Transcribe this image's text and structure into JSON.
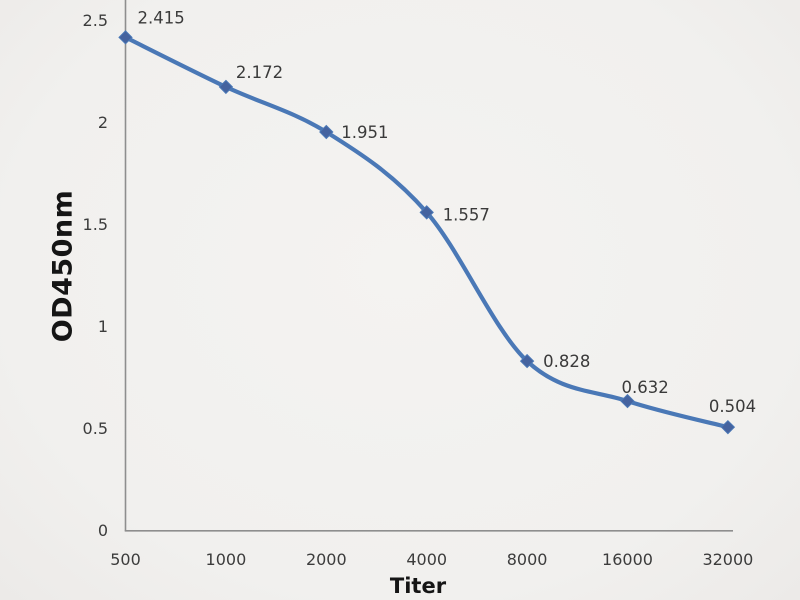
{
  "chart_data": {
    "type": "line",
    "subtype": "smooth-line-with-markers",
    "title": "",
    "xlabel": "Titer",
    "ylabel": "OD450nm",
    "categories": [
      500,
      1000,
      2000,
      4000,
      8000,
      16000,
      32000
    ],
    "category_labels": [
      "500",
      "1000",
      "2000",
      "4000",
      "8000",
      "16000",
      "32000"
    ],
    "series": [
      {
        "name": "OD450nm",
        "values": [
          2.415,
          2.172,
          1.951,
          1.557,
          0.828,
          0.632,
          0.504
        ]
      }
    ],
    "point_labels": [
      "2.415",
      "2.172",
      "1.951",
      "1.557",
      "0.828",
      "0.632",
      "0.504"
    ],
    "ylim": [
      0,
      2.5
    ],
    "y_ticks": [
      0,
      0.5,
      1,
      1.5,
      2,
      2.5
    ],
    "y_tick_labels": [
      "0",
      "0.5",
      "1",
      "1.5",
      "2",
      "2.5"
    ],
    "x_scale": "log2-equal-spacing",
    "grid": false,
    "legend": "none",
    "marker_shape": "diamond",
    "colors": {
      "line": "#4a78b6",
      "marker": "#45639f",
      "axis": "#8e8e8e",
      "tick_text": "#3c3c3c",
      "label_text": "#3a3a3a",
      "background": "#f1f0ee"
    }
  }
}
